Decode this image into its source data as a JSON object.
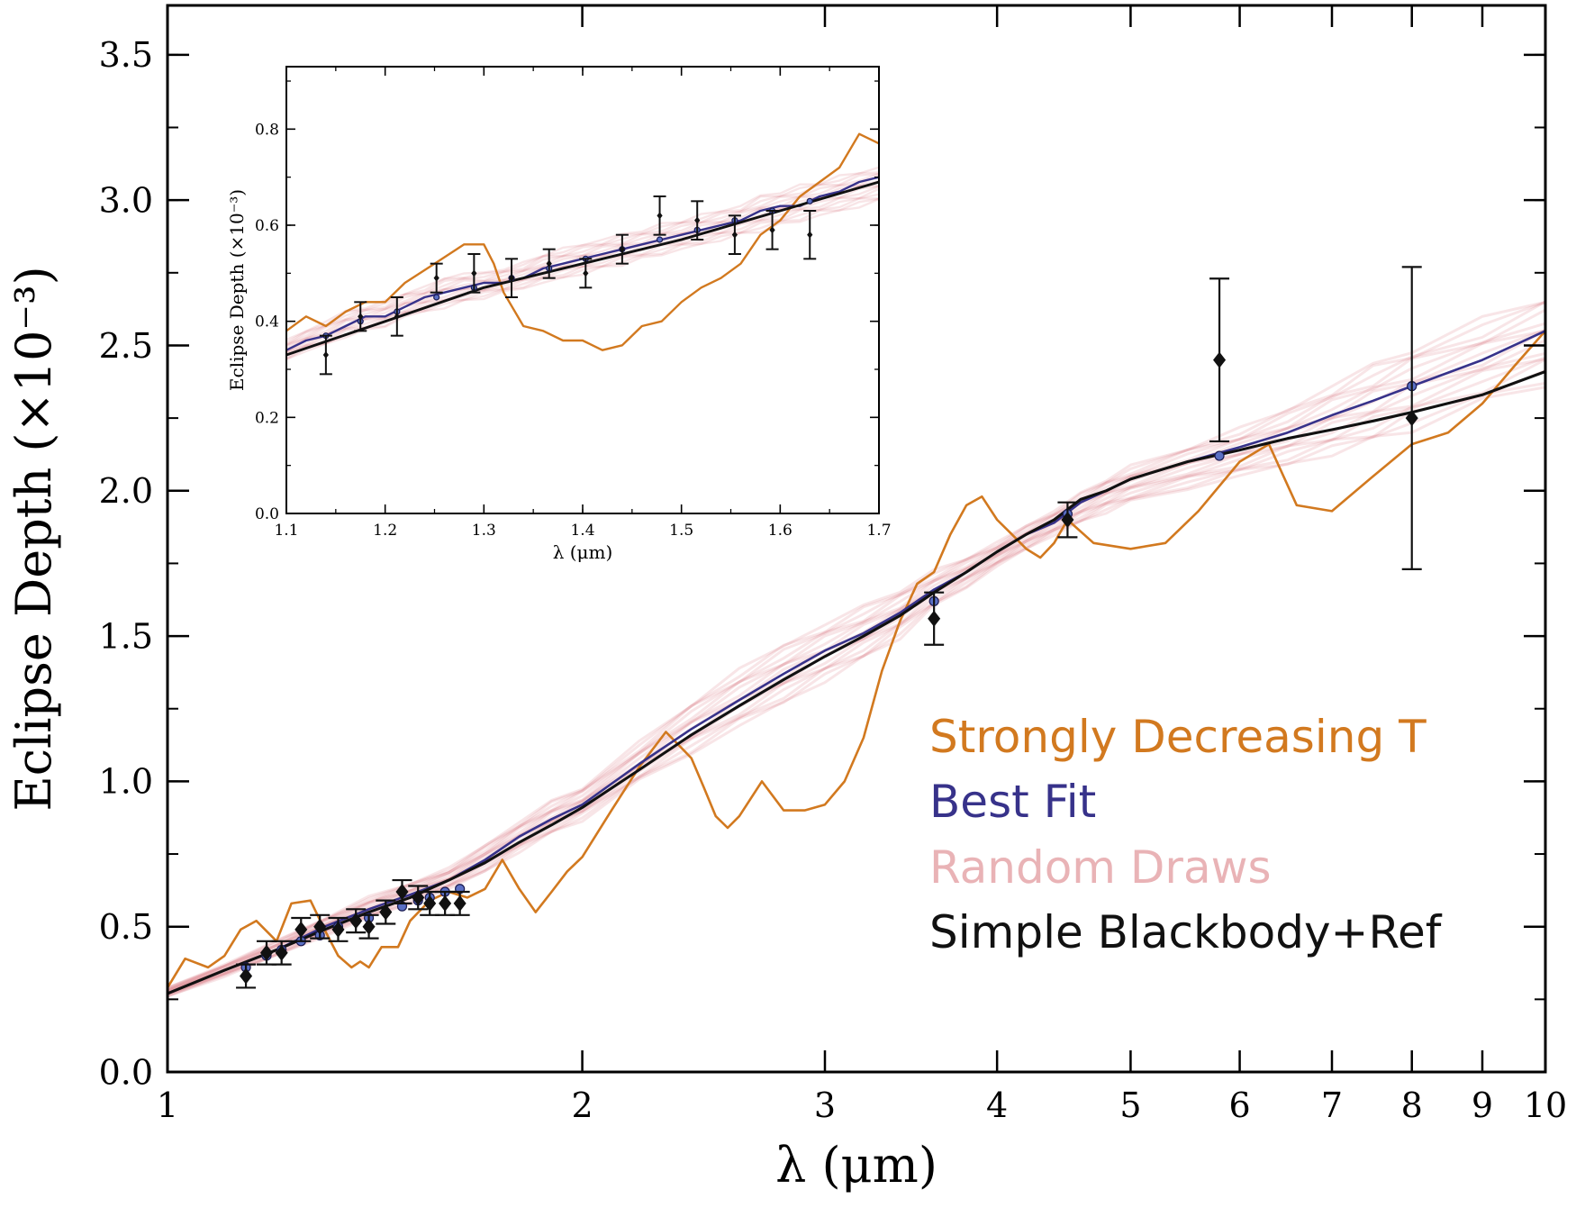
{
  "chart_data": [
    {
      "type": "line",
      "role": "main",
      "xlabel": "λ (μm)",
      "ylabel": "Eclipse Depth (×10⁻³)",
      "xscale": "log",
      "xlim": [
        1,
        10
      ],
      "ylim": [
        0.0,
        3.67
      ],
      "x_ticks": [
        1,
        2,
        3,
        4,
        5,
        6,
        7,
        8,
        9,
        10
      ],
      "x_tick_labels": [
        "1",
        "2",
        "3",
        "4",
        "5",
        "6",
        "7",
        "8",
        "9",
        "10"
      ],
      "y_ticks": [
        0.0,
        0.5,
        1.0,
        1.5,
        2.0,
        2.5,
        3.0,
        3.5
      ],
      "y_tick_labels": [
        "0.0",
        "0.5",
        "1.0",
        "1.5",
        "2.0",
        "2.5",
        "3.0",
        "3.5"
      ],
      "grid": false,
      "legend_position": "lower-right",
      "colors": {
        "strongly_decreasing": "#d2791f",
        "best_fit": "#37328a",
        "random_draws": "#c8283a",
        "random_draws_legend": "#e9b3b6",
        "blackbody": "#111111",
        "data": "#111111"
      },
      "series": [
        {
          "name": "Strongly Decreasing T",
          "x": [
            1.0,
            1.03,
            1.07,
            1.1,
            1.13,
            1.16,
            1.2,
            1.23,
            1.27,
            1.3,
            1.33,
            1.36,
            1.38,
            1.4,
            1.43,
            1.47,
            1.5,
            1.55,
            1.6,
            1.65,
            1.7,
            1.75,
            1.8,
            1.85,
            1.9,
            1.95,
            2.0,
            2.1,
            2.2,
            2.3,
            2.4,
            2.45,
            2.5,
            2.55,
            2.6,
            2.7,
            2.8,
            2.9,
            3.0,
            3.1,
            3.2,
            3.3,
            3.4,
            3.5,
            3.6,
            3.7,
            3.8,
            3.9,
            4.0,
            4.1,
            4.2,
            4.3,
            4.4,
            4.5,
            4.7,
            5.0,
            5.3,
            5.6,
            6.0,
            6.3,
            6.6,
            7.0,
            7.5,
            8.0,
            8.5,
            9.0,
            9.5,
            10.0
          ],
          "y": [
            0.29,
            0.39,
            0.36,
            0.4,
            0.49,
            0.52,
            0.45,
            0.58,
            0.59,
            0.49,
            0.4,
            0.36,
            0.38,
            0.36,
            0.43,
            0.43,
            0.52,
            0.59,
            0.62,
            0.6,
            0.63,
            0.73,
            0.63,
            0.55,
            0.62,
            0.69,
            0.74,
            0.9,
            1.05,
            1.17,
            1.08,
            0.98,
            0.88,
            0.84,
            0.88,
            1.0,
            0.9,
            0.9,
            0.92,
            1.0,
            1.15,
            1.38,
            1.55,
            1.68,
            1.72,
            1.85,
            1.95,
            1.98,
            1.9,
            1.85,
            1.8,
            1.77,
            1.82,
            1.9,
            1.82,
            1.8,
            1.82,
            1.93,
            2.1,
            2.16,
            1.95,
            1.93,
            2.05,
            2.16,
            2.2,
            2.3,
            2.43,
            2.55
          ]
        },
        {
          "name": "Best Fit",
          "x": [
            1.0,
            1.1,
            1.2,
            1.3,
            1.4,
            1.5,
            1.6,
            1.7,
            1.8,
            1.9,
            2.0,
            2.2,
            2.4,
            2.6,
            2.8,
            3.0,
            3.2,
            3.4,
            3.6,
            3.8,
            4.0,
            4.2,
            4.4,
            4.6,
            4.8,
            5.0,
            5.5,
            6.0,
            6.5,
            7.0,
            7.5,
            8.0,
            9.0,
            10.0
          ],
          "y": [
            0.27,
            0.35,
            0.42,
            0.5,
            0.56,
            0.61,
            0.66,
            0.73,
            0.81,
            0.87,
            0.92,
            1.06,
            1.18,
            1.28,
            1.37,
            1.45,
            1.51,
            1.58,
            1.66,
            1.72,
            1.79,
            1.85,
            1.89,
            1.96,
            2.0,
            2.04,
            2.1,
            2.15,
            2.2,
            2.26,
            2.31,
            2.36,
            2.45,
            2.55
          ]
        },
        {
          "name": "Random Draws",
          "note_band_low": [
            0.26,
            0.33,
            0.4,
            0.47,
            0.53,
            0.58,
            0.63,
            0.69,
            0.76,
            0.82,
            0.87,
            1.0,
            1.1,
            1.19,
            1.27,
            1.35,
            1.42,
            1.5,
            1.6,
            1.67,
            1.74,
            1.8,
            1.85,
            1.89,
            1.93,
            1.96,
            2.01,
            2.05,
            2.09,
            2.13,
            2.17,
            2.22,
            2.3,
            2.37
          ],
          "note_band_high": [
            0.29,
            0.37,
            0.45,
            0.53,
            0.6,
            0.65,
            0.7,
            0.78,
            0.86,
            0.93,
            0.98,
            1.13,
            1.27,
            1.38,
            1.47,
            1.54,
            1.6,
            1.66,
            1.72,
            1.77,
            1.82,
            1.88,
            1.93,
            1.99,
            2.04,
            2.08,
            2.15,
            2.21,
            2.28,
            2.36,
            2.43,
            2.49,
            2.58,
            2.67
          ]
        },
        {
          "name": "Simple Blackbody+Ref",
          "x": [
            1.0,
            1.1,
            1.2,
            1.3,
            1.4,
            1.5,
            1.6,
            1.7,
            1.8,
            1.9,
            2.0,
            2.2,
            2.4,
            2.6,
            2.8,
            3.0,
            3.2,
            3.4,
            3.6,
            3.8,
            4.0,
            4.2,
            4.4,
            4.6,
            4.8,
            5.0,
            5.5,
            6.0,
            6.5,
            7.0,
            7.5,
            8.0,
            9.0,
            10.0
          ],
          "y": [
            0.27,
            0.35,
            0.42,
            0.49,
            0.55,
            0.6,
            0.66,
            0.72,
            0.79,
            0.85,
            0.91,
            1.04,
            1.16,
            1.26,
            1.35,
            1.43,
            1.5,
            1.57,
            1.65,
            1.72,
            1.79,
            1.85,
            1.9,
            1.97,
            2.0,
            2.04,
            2.1,
            2.14,
            2.18,
            2.21,
            2.24,
            2.27,
            2.33,
            2.41
          ]
        }
      ],
      "data_points": {
        "x": [
          1.14,
          1.18,
          1.21,
          1.25,
          1.29,
          1.33,
          1.37,
          1.4,
          1.44,
          1.48,
          1.52,
          1.55,
          1.59,
          1.63,
          3.6,
          4.5,
          5.8,
          8.0
        ],
        "y": [
          0.33,
          0.41,
          0.41,
          0.49,
          0.5,
          0.49,
          0.52,
          0.5,
          0.55,
          0.62,
          0.6,
          0.58,
          0.58,
          0.58,
          1.56,
          1.9,
          2.45,
          2.25
        ],
        "err": [
          0.04,
          0.04,
          0.04,
          0.04,
          0.04,
          0.04,
          0.04,
          0.04,
          0.04,
          0.04,
          0.04,
          0.04,
          0.04,
          0.04,
          0.09,
          0.06,
          0.28,
          0.52
        ]
      },
      "model_points": {
        "x": [
          1.14,
          1.18,
          1.21,
          1.25,
          1.29,
          1.33,
          1.37,
          1.4,
          1.44,
          1.48,
          1.52,
          1.55,
          1.59,
          1.63,
          3.6,
          4.5,
          5.8,
          8.0
        ],
        "y": [
          0.36,
          0.4,
          0.42,
          0.45,
          0.47,
          0.5,
          0.52,
          0.53,
          0.55,
          0.57,
          0.59,
          0.6,
          0.62,
          0.63,
          1.62,
          1.92,
          2.12,
          2.36
        ]
      },
      "legend": [
        {
          "label": "Strongly Decreasing T",
          "color": "#d2791f"
        },
        {
          "label": "Best Fit",
          "color": "#37328a"
        },
        {
          "label": "Random Draws",
          "color": "#e9b3b6"
        },
        {
          "label": "Simple Blackbody+Ref",
          "color": "#111111"
        }
      ]
    },
    {
      "type": "line",
      "role": "inset",
      "xlabel": "λ (μm)",
      "ylabel": "Eclipse Depth (×10⁻³)",
      "xlim": [
        1.1,
        1.7
      ],
      "ylim": [
        0.0,
        0.93
      ],
      "x_ticks": [
        1.1,
        1.2,
        1.3,
        1.4,
        1.5,
        1.6,
        1.7
      ],
      "x_tick_labels": [
        "1.1",
        "1.2",
        "1.3",
        "1.4",
        "1.5",
        "1.6",
        "1.7"
      ],
      "y_ticks": [
        0.0,
        0.2,
        0.4,
        0.6,
        0.8
      ],
      "y_tick_labels": [
        "0.0",
        "0.2",
        "0.4",
        "0.6",
        "0.8"
      ],
      "grid": false,
      "series": [
        {
          "name": "Strongly Decreasing T",
          "x": [
            1.1,
            1.12,
            1.14,
            1.16,
            1.18,
            1.2,
            1.22,
            1.25,
            1.28,
            1.3,
            1.31,
            1.32,
            1.34,
            1.36,
            1.38,
            1.4,
            1.42,
            1.44,
            1.46,
            1.48,
            1.5,
            1.52,
            1.54,
            1.56,
            1.58,
            1.6,
            1.62,
            1.64,
            1.66,
            1.68,
            1.7
          ],
          "y": [
            0.38,
            0.41,
            0.39,
            0.42,
            0.44,
            0.44,
            0.48,
            0.52,
            0.56,
            0.56,
            0.52,
            0.46,
            0.39,
            0.38,
            0.36,
            0.36,
            0.34,
            0.35,
            0.39,
            0.4,
            0.44,
            0.47,
            0.49,
            0.52,
            0.58,
            0.61,
            0.66,
            0.69,
            0.72,
            0.79,
            0.77
          ]
        },
        {
          "name": "Best Fit",
          "x": [
            1.1,
            1.12,
            1.14,
            1.16,
            1.18,
            1.2,
            1.22,
            1.24,
            1.26,
            1.28,
            1.3,
            1.32,
            1.34,
            1.36,
            1.38,
            1.4,
            1.42,
            1.44,
            1.46,
            1.48,
            1.5,
            1.52,
            1.54,
            1.56,
            1.58,
            1.6,
            1.62,
            1.64,
            1.66,
            1.68,
            1.7
          ],
          "y": [
            0.34,
            0.36,
            0.37,
            0.39,
            0.41,
            0.41,
            0.43,
            0.45,
            0.46,
            0.47,
            0.48,
            0.48,
            0.49,
            0.51,
            0.52,
            0.53,
            0.54,
            0.55,
            0.56,
            0.57,
            0.58,
            0.59,
            0.6,
            0.61,
            0.63,
            0.64,
            0.64,
            0.66,
            0.67,
            0.69,
            0.7
          ]
        },
        {
          "name": "Random Draws",
          "note_band_low": [
            0.32,
            0.34,
            0.35,
            0.37,
            0.38,
            0.39,
            0.41,
            0.42,
            0.43,
            0.44,
            0.45,
            0.46,
            0.47,
            0.48,
            0.49,
            0.5,
            0.51,
            0.52,
            0.53,
            0.54,
            0.55,
            0.56,
            0.57,
            0.58,
            0.59,
            0.6,
            0.61,
            0.62,
            0.63,
            0.64,
            0.65
          ],
          "note_band_high": [
            0.36,
            0.38,
            0.4,
            0.42,
            0.43,
            0.44,
            0.46,
            0.47,
            0.49,
            0.5,
            0.5,
            0.51,
            0.52,
            0.54,
            0.55,
            0.56,
            0.57,
            0.58,
            0.59,
            0.6,
            0.61,
            0.62,
            0.63,
            0.64,
            0.66,
            0.67,
            0.68,
            0.69,
            0.7,
            0.71,
            0.72
          ]
        },
        {
          "name": "Simple Blackbody+Ref",
          "x": [
            1.1,
            1.2,
            1.3,
            1.4,
            1.5,
            1.6,
            1.7
          ],
          "y": [
            0.33,
            0.4,
            0.47,
            0.52,
            0.57,
            0.63,
            0.69
          ]
        }
      ],
      "data_points": {
        "x": [
          1.14,
          1.175,
          1.212,
          1.252,
          1.29,
          1.328,
          1.366,
          1.403,
          1.44,
          1.478,
          1.516,
          1.554,
          1.592,
          1.63
        ],
        "y": [
          0.33,
          0.41,
          0.41,
          0.49,
          0.5,
          0.49,
          0.52,
          0.5,
          0.55,
          0.62,
          0.61,
          0.58,
          0.59,
          0.58
        ],
        "err": [
          0.04,
          0.03,
          0.04,
          0.03,
          0.04,
          0.04,
          0.03,
          0.03,
          0.03,
          0.04,
          0.04,
          0.04,
          0.04,
          0.05
        ]
      },
      "model_points": {
        "x": [
          1.14,
          1.175,
          1.212,
          1.252,
          1.29,
          1.328,
          1.366,
          1.403,
          1.44,
          1.478,
          1.516,
          1.554,
          1.592,
          1.63
        ],
        "y": [
          0.37,
          0.4,
          0.42,
          0.45,
          0.47,
          0.49,
          0.51,
          0.53,
          0.55,
          0.57,
          0.59,
          0.61,
          0.63,
          0.65
        ]
      }
    }
  ]
}
